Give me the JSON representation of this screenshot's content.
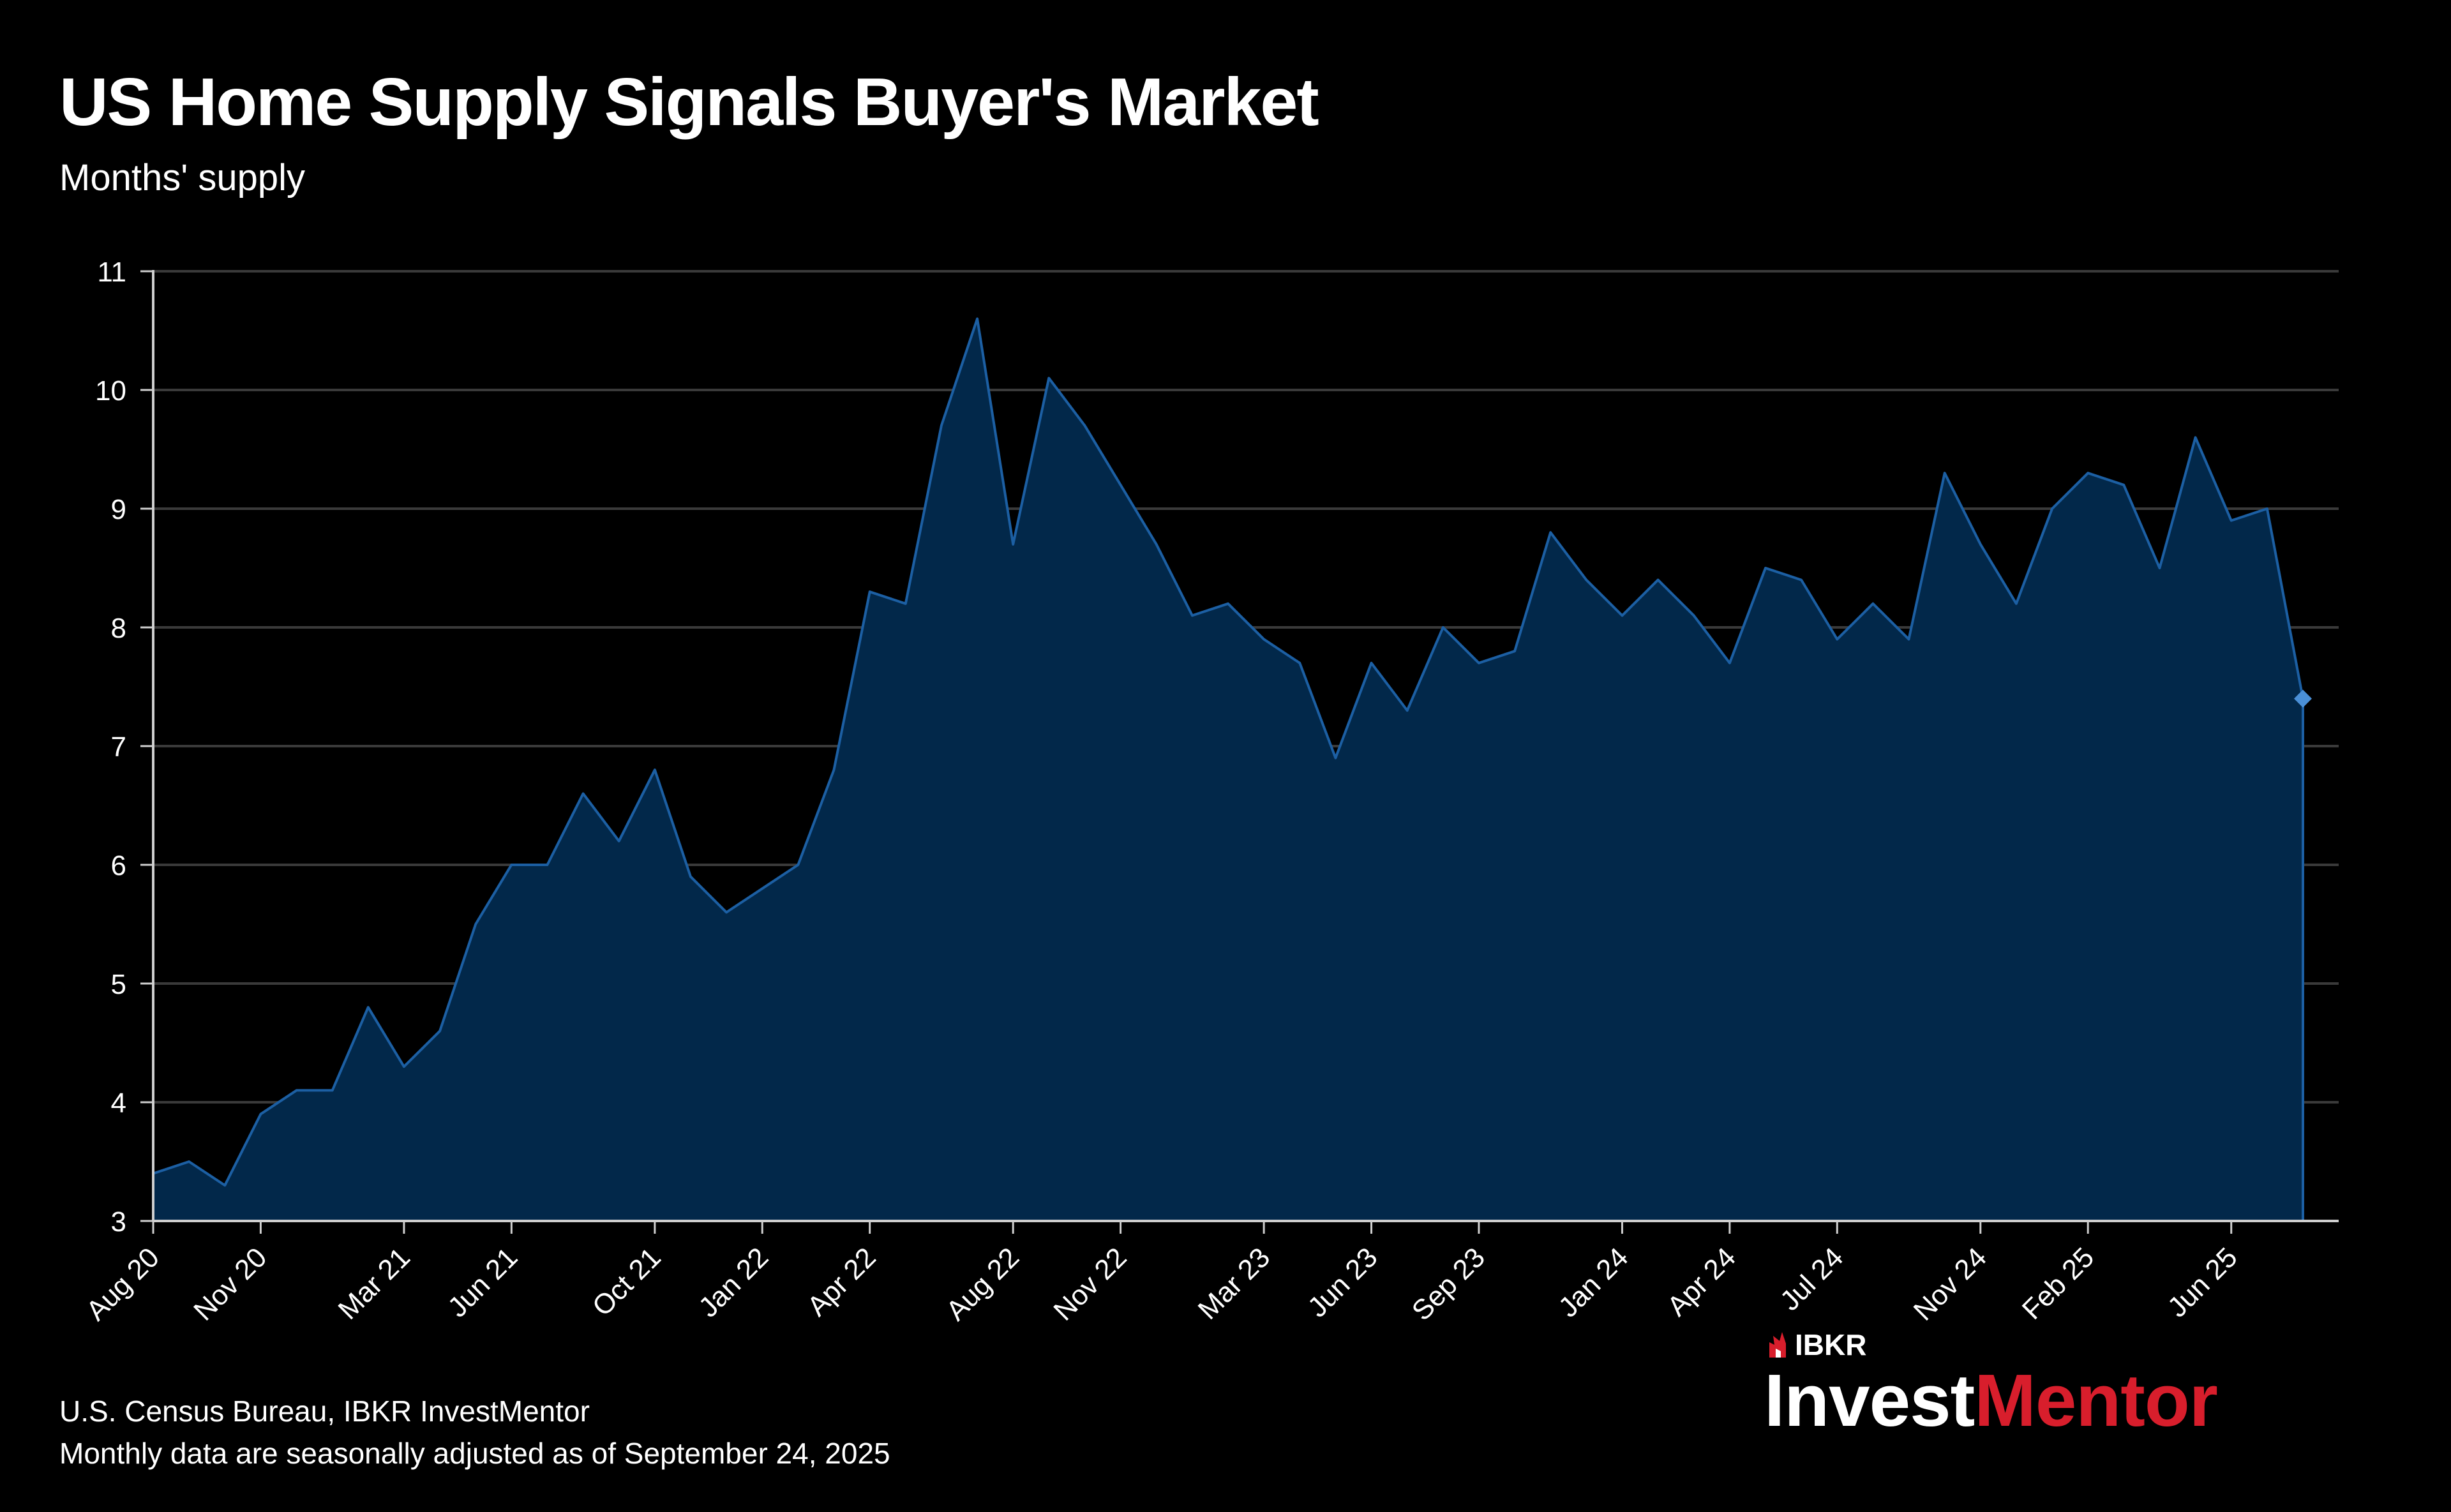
{
  "header": {
    "title": "US Home Supply Signals Buyer's Market",
    "subtitle": "Months' supply"
  },
  "footer": {
    "source_line": "U.S. Census Bureau, IBKR InvestMentor",
    "note_line": "Monthly data are seasonally adjusted as of September 24, 2025"
  },
  "brand": {
    "small": "IBKR",
    "main_white": "Invest",
    "main_red": "Mentor",
    "red_color": "#d81e2c"
  },
  "colors": {
    "area_fill": "#02284a",
    "line": "#1c5fa3",
    "grid": "#3a3a3a",
    "background": "#000000"
  },
  "chart_data": {
    "type": "area",
    "title": "US Home Supply Signals Buyer's Market",
    "ylabel": "Months' supply",
    "xlabel": "",
    "ylim": [
      3,
      11
    ],
    "yticks": [
      "3",
      "4",
      "5",
      "6",
      "7",
      "8",
      "9",
      "10",
      "11"
    ],
    "grid": true,
    "x": [
      "Aug 20",
      "Sep 20",
      "Oct 20",
      "Nov 20",
      "Dec 20",
      "Jan 21",
      "Feb 21",
      "Mar 21",
      "Apr 21",
      "May 21",
      "Jun 21",
      "Jul 21",
      "Aug 21",
      "Sep 21",
      "Oct 21",
      "Nov 21",
      "Dec 21",
      "Jan 22",
      "Feb 22",
      "Mar 22",
      "Apr 22",
      "May 22",
      "Jun 22",
      "Jul 22",
      "Aug 22",
      "Sep 22",
      "Oct 22",
      "Nov 22",
      "Dec 22",
      "Jan 23",
      "Feb 23",
      "Mar 23",
      "Apr 23",
      "May 23",
      "Jun 23",
      "Jul 23",
      "Aug 23",
      "Sep 23",
      "Oct 23",
      "Nov 23",
      "Dec 23",
      "Jan 24",
      "Feb 24",
      "Mar 24",
      "Apr 24",
      "May 24",
      "Jun 24",
      "Jul 24",
      "Aug 24",
      "Sep 24",
      "Oct 24",
      "Nov 24",
      "Dec 24",
      "Jan 25",
      "Feb 25",
      "Mar 25",
      "Apr 25",
      "May 25",
      "Jun 25",
      "Jul 25",
      "Aug 25"
    ],
    "values": [
      3.4,
      3.5,
      3.3,
      3.9,
      4.1,
      4.1,
      4.8,
      4.3,
      4.6,
      5.5,
      6.0,
      6.0,
      6.6,
      6.2,
      6.8,
      5.9,
      5.6,
      5.8,
      6.0,
      6.8,
      8.3,
      8.2,
      9.7,
      10.6,
      8.7,
      10.1,
      9.7,
      9.2,
      8.7,
      8.1,
      8.2,
      7.9,
      7.7,
      6.9,
      7.7,
      7.3,
      8.0,
      7.7,
      7.8,
      8.8,
      8.4,
      8.1,
      8.4,
      8.1,
      7.7,
      8.5,
      8.4,
      7.9,
      8.2,
      7.9,
      9.3,
      8.7,
      8.2,
      9.0,
      9.3,
      9.2,
      8.5,
      9.6,
      8.9,
      9.0,
      7.4
    ],
    "tick_labels": [
      "Aug 20",
      "Nov 20",
      "Mar 21",
      "Jun 21",
      "Oct 21",
      "Jan 22",
      "Apr 22",
      "Aug 22",
      "Nov 22",
      "Mar 23",
      "Jun 23",
      "Sep 23",
      "Jan 24",
      "Apr 24",
      "Jul 24",
      "Nov 24",
      "Feb 25",
      "Jun 25"
    ]
  }
}
